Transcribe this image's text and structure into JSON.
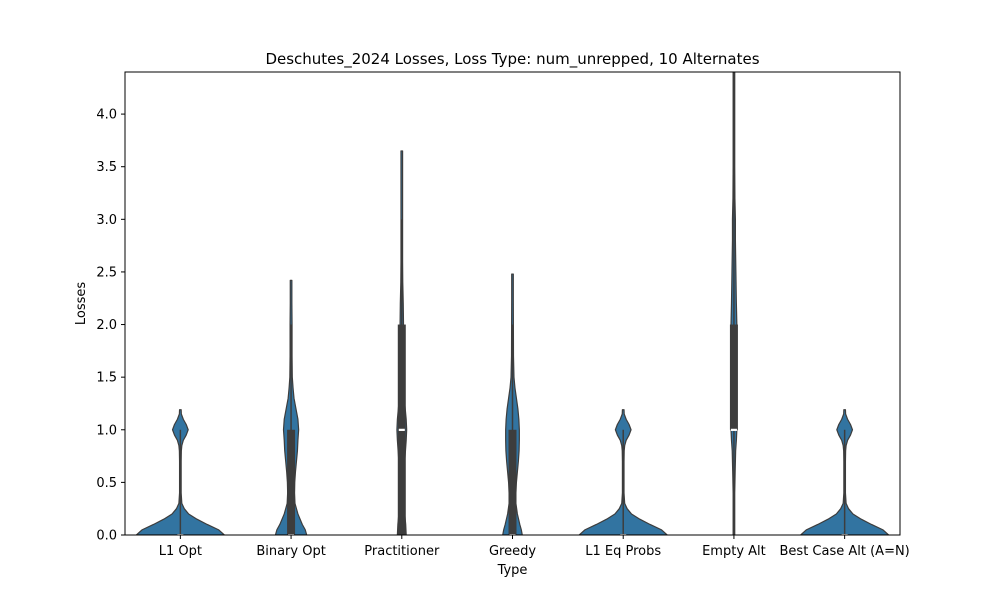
{
  "chart_data": {
    "type": "violin",
    "title": "Deschutes_2024 Losses, Loss Type: num_unrepped, 10 Alternates",
    "xlabel": "Type",
    "ylabel": "Losses",
    "ylim": [
      0,
      4.4
    ],
    "yticks": [
      "0.0",
      "0.5",
      "1.0",
      "1.5",
      "2.0",
      "2.5",
      "3.0",
      "3.5",
      "4.0"
    ],
    "yticks_values": [
      0,
      0.5,
      1.0,
      1.5,
      2.0,
      2.5,
      3.0,
      3.5,
      4.0
    ],
    "grid": false,
    "violin_color": "#3274a1",
    "edge_color": "#3d3d3d",
    "categories": [
      "L1 Opt",
      "Binary Opt",
      "Practitioner",
      "Greedy",
      "L1 Eq Probs",
      "Empty Alt",
      "Best Case Alt (A=N)"
    ],
    "series": [
      {
        "category": "L1 Opt",
        "min": 0,
        "q1": 0,
        "median": 0,
        "q3": 0,
        "max": 1,
        "density": [
          [
            0,
            0.9
          ],
          [
            0.05,
            0.78
          ],
          [
            0.1,
            0.55
          ],
          [
            0.15,
            0.34
          ],
          [
            0.2,
            0.17
          ],
          [
            0.25,
            0.08
          ],
          [
            0.3,
            0.03
          ],
          [
            0.4,
            0.016
          ],
          [
            0.5,
            0.012
          ],
          [
            0.6,
            0.012
          ],
          [
            0.7,
            0.014
          ],
          [
            0.8,
            0.02
          ],
          [
            0.85,
            0.03
          ],
          [
            0.9,
            0.06
          ],
          [
            0.95,
            0.12
          ],
          [
            1.0,
            0.16
          ],
          [
            1.05,
            0.12
          ],
          [
            1.1,
            0.06
          ],
          [
            1.15,
            0.02
          ],
          [
            1.19,
            0
          ]
        ]
      },
      {
        "category": "Binary Opt",
        "min": 0,
        "q1": 0,
        "median": 0,
        "q3": 1,
        "max": 2,
        "density": [
          [
            0,
            0.32
          ],
          [
            0.05,
            0.29
          ],
          [
            0.1,
            0.23
          ],
          [
            0.2,
            0.14
          ],
          [
            0.3,
            0.08
          ],
          [
            0.4,
            0.07
          ],
          [
            0.5,
            0.075
          ],
          [
            0.6,
            0.09
          ],
          [
            0.7,
            0.11
          ],
          [
            0.8,
            0.13
          ],
          [
            0.9,
            0.14
          ],
          [
            1.0,
            0.155
          ],
          [
            1.1,
            0.14
          ],
          [
            1.2,
            0.1
          ],
          [
            1.3,
            0.06
          ],
          [
            1.4,
            0.04
          ],
          [
            1.5,
            0.025
          ],
          [
            1.7,
            0.02
          ],
          [
            2.0,
            0.02
          ],
          [
            2.2,
            0.012
          ],
          [
            2.42,
            0
          ]
        ]
      },
      {
        "category": "Practitioner",
        "min": 0,
        "q1": 0,
        "median": 1,
        "q3": 2,
        "max": 3,
        "density": [
          [
            0,
            0.09
          ],
          [
            0.1,
            0.08
          ],
          [
            0.2,
            0.06
          ],
          [
            0.3,
            0.045
          ],
          [
            0.4,
            0.04
          ],
          [
            0.5,
            0.045
          ],
          [
            0.6,
            0.05
          ],
          [
            0.7,
            0.06
          ],
          [
            0.8,
            0.075
          ],
          [
            0.9,
            0.09
          ],
          [
            1.0,
            0.1
          ],
          [
            1.1,
            0.09
          ],
          [
            1.2,
            0.07
          ],
          [
            1.3,
            0.05
          ],
          [
            1.4,
            0.04
          ],
          [
            1.5,
            0.035
          ],
          [
            1.7,
            0.03
          ],
          [
            1.9,
            0.033
          ],
          [
            2.0,
            0.035
          ],
          [
            2.2,
            0.03
          ],
          [
            2.4,
            0.02
          ],
          [
            2.6,
            0.012
          ],
          [
            3.0,
            0.01
          ],
          [
            3.4,
            0.007
          ],
          [
            3.65,
            0
          ]
        ]
      },
      {
        "category": "Greedy",
        "min": 0,
        "q1": 0,
        "median": 0,
        "q3": 1,
        "max": 2,
        "density": [
          [
            0,
            0.2
          ],
          [
            0.05,
            0.18
          ],
          [
            0.1,
            0.15
          ],
          [
            0.2,
            0.1
          ],
          [
            0.3,
            0.07
          ],
          [
            0.4,
            0.07
          ],
          [
            0.5,
            0.08
          ],
          [
            0.6,
            0.1
          ],
          [
            0.7,
            0.12
          ],
          [
            0.8,
            0.135
          ],
          [
            0.9,
            0.14
          ],
          [
            1.0,
            0.14
          ],
          [
            1.1,
            0.13
          ],
          [
            1.2,
            0.11
          ],
          [
            1.3,
            0.08
          ],
          [
            1.4,
            0.05
          ],
          [
            1.5,
            0.03
          ],
          [
            1.7,
            0.02
          ],
          [
            2.0,
            0.018
          ],
          [
            2.25,
            0.01
          ],
          [
            2.48,
            0
          ]
        ]
      },
      {
        "category": "L1 Eq Probs",
        "min": 0,
        "q1": 0,
        "median": 0,
        "q3": 0,
        "max": 1,
        "density": [
          [
            0,
            0.9
          ],
          [
            0.05,
            0.78
          ],
          [
            0.1,
            0.55
          ],
          [
            0.15,
            0.34
          ],
          [
            0.2,
            0.17
          ],
          [
            0.25,
            0.08
          ],
          [
            0.3,
            0.03
          ],
          [
            0.4,
            0.016
          ],
          [
            0.5,
            0.012
          ],
          [
            0.6,
            0.012
          ],
          [
            0.7,
            0.014
          ],
          [
            0.8,
            0.02
          ],
          [
            0.85,
            0.03
          ],
          [
            0.9,
            0.06
          ],
          [
            0.95,
            0.12
          ],
          [
            1.0,
            0.16
          ],
          [
            1.05,
            0.12
          ],
          [
            1.1,
            0.06
          ],
          [
            1.15,
            0.02
          ],
          [
            1.19,
            0
          ]
        ]
      },
      {
        "category": "Empty Alt",
        "min": 0,
        "q1": 1,
        "median": 1,
        "q3": 2,
        "max": 4.4,
        "density": [
          [
            0,
            0.008
          ],
          [
            0.2,
            0.01
          ],
          [
            0.4,
            0.016
          ],
          [
            0.6,
            0.025
          ],
          [
            0.8,
            0.035
          ],
          [
            0.9,
            0.05
          ],
          [
            1.0,
            0.06
          ],
          [
            1.1,
            0.05
          ],
          [
            1.3,
            0.04
          ],
          [
            1.5,
            0.05
          ],
          [
            1.7,
            0.06
          ],
          [
            2.0,
            0.06
          ],
          [
            2.2,
            0.05
          ],
          [
            2.5,
            0.04
          ],
          [
            2.8,
            0.03
          ],
          [
            3.0,
            0.03
          ],
          [
            3.2,
            0.02
          ],
          [
            3.5,
            0.015
          ],
          [
            3.8,
            0.01
          ],
          [
            4.1,
            0.008
          ],
          [
            4.4,
            0.006
          ]
        ]
      },
      {
        "category": "Best Case Alt (A=N)",
        "min": 0,
        "q1": 0,
        "median": 0,
        "q3": 0,
        "max": 1,
        "density": [
          [
            0,
            0.9
          ],
          [
            0.05,
            0.78
          ],
          [
            0.1,
            0.55
          ],
          [
            0.15,
            0.34
          ],
          [
            0.2,
            0.17
          ],
          [
            0.25,
            0.08
          ],
          [
            0.3,
            0.03
          ],
          [
            0.4,
            0.016
          ],
          [
            0.5,
            0.012
          ],
          [
            0.6,
            0.012
          ],
          [
            0.7,
            0.014
          ],
          [
            0.8,
            0.02
          ],
          [
            0.85,
            0.03
          ],
          [
            0.9,
            0.06
          ],
          [
            0.95,
            0.12
          ],
          [
            1.0,
            0.16
          ],
          [
            1.05,
            0.12
          ],
          [
            1.1,
            0.06
          ],
          [
            1.15,
            0.02
          ],
          [
            1.19,
            0
          ]
        ]
      }
    ]
  }
}
